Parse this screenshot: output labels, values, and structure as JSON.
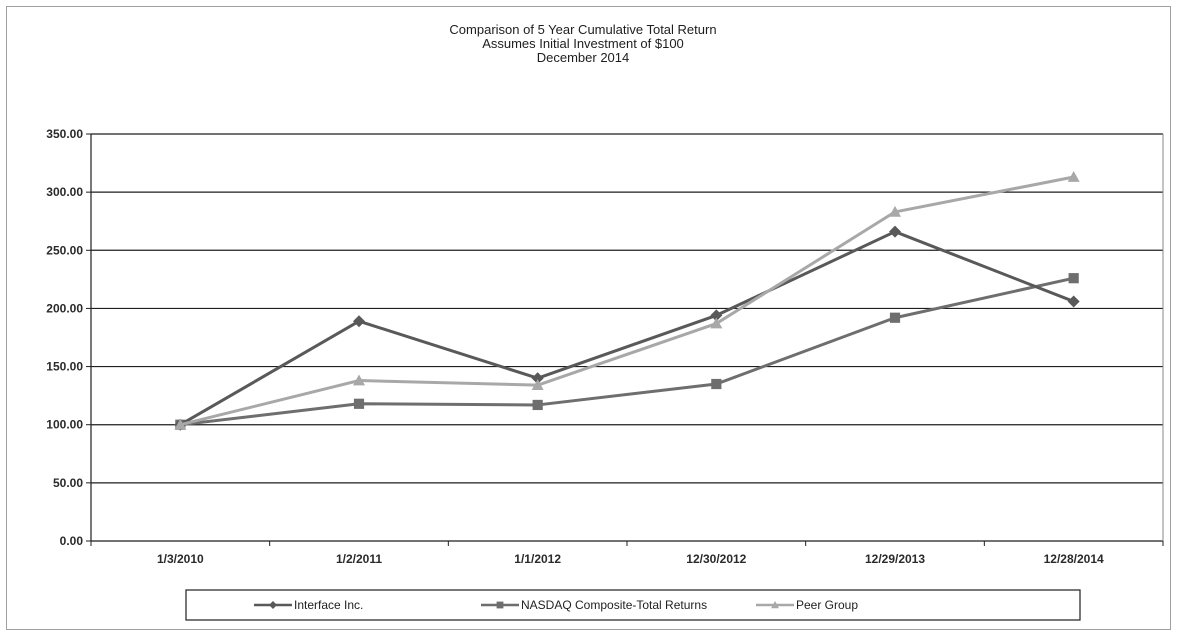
{
  "chart_data": {
    "type": "line",
    "title_lines": [
      "Comparison of 5 Year Cumulative Total Return",
      "Assumes Initial Investment of $100",
      "December 2014"
    ],
    "categories": [
      "1/3/2010",
      "1/2/2011",
      "1/1/2012",
      "12/30/2012",
      "12/29/2013",
      "12/28/2014"
    ],
    "ylim": [
      0,
      350
    ],
    "yticks": [
      0,
      50,
      100,
      150,
      200,
      250,
      300,
      350
    ],
    "ytick_labels": [
      "0.00",
      "50.00",
      "100.00",
      "150.00",
      "200.00",
      "250.00",
      "300.00",
      "350.00"
    ],
    "grid": "horizontal",
    "legend_position": "bottom",
    "series": [
      {
        "name": "Interface Inc.",
        "marker": "diamond",
        "color": "#595959",
        "values": [
          100,
          189,
          140,
          194,
          266,
          206
        ]
      },
      {
        "name": "NASDAQ Composite-Total Returns",
        "marker": "square",
        "color": "#6e6e6e",
        "values": [
          100,
          118,
          117,
          135,
          192,
          226
        ]
      },
      {
        "name": "Peer Group",
        "marker": "triangle",
        "color": "#a8a8a8",
        "values": [
          100,
          138,
          134,
          187,
          283,
          313
        ]
      }
    ]
  }
}
